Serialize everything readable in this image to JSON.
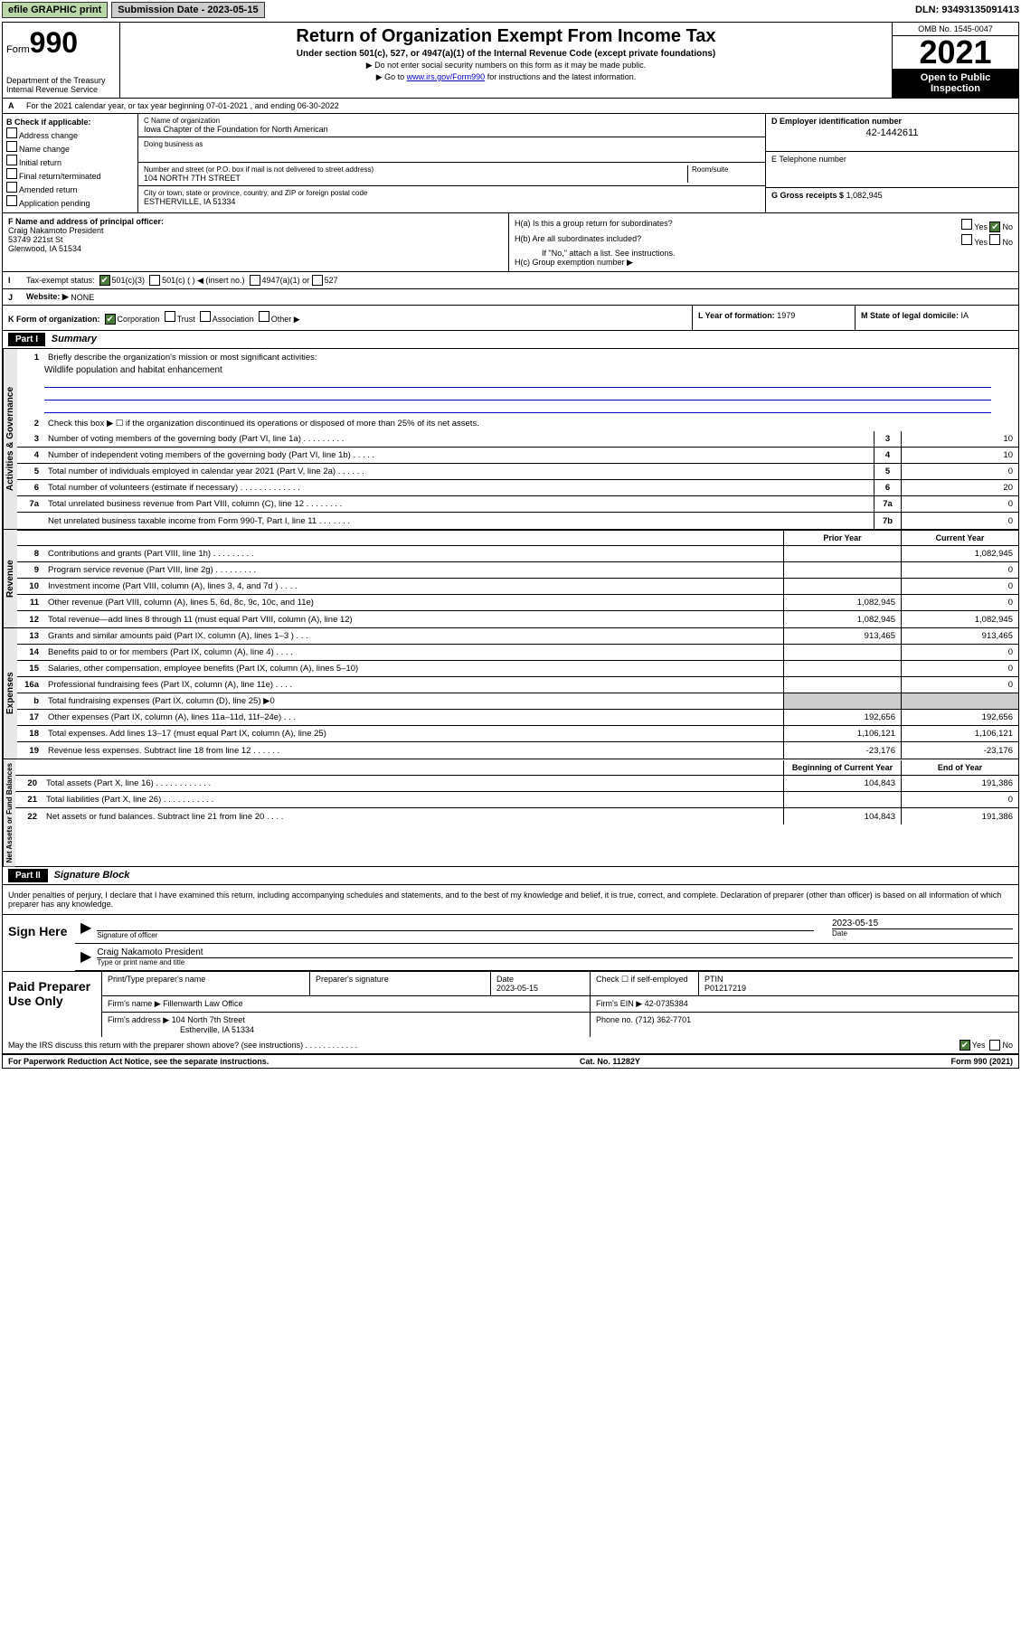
{
  "toolbar": {
    "efile": "efile GRAPHIC print",
    "submission_label": "Submission Date - 2023-05-15",
    "dln": "DLN: 93493135091413"
  },
  "header": {
    "form_label": "Form",
    "form_num": "990",
    "dept": "Department of the Treasury",
    "irs": "Internal Revenue Service",
    "title": "Return of Organization Exempt From Income Tax",
    "subtitle": "Under section 501(c), 527, or 4947(a)(1) of the Internal Revenue Code (except private foundations)",
    "note1": "▶ Do not enter social security numbers on this form as it may be made public.",
    "note2_pre": "▶ Go to ",
    "note2_link": "www.irs.gov/Form990",
    "note2_post": " for instructions and the latest information.",
    "omb": "OMB No. 1545-0047",
    "year": "2021",
    "inspection": "Open to Public Inspection"
  },
  "line_a": "For the 2021 calendar year, or tax year beginning 07-01-2021  , and ending 06-30-2022",
  "section_b": {
    "label": "B Check if applicable:",
    "opts": [
      "Address change",
      "Name change",
      "Initial return",
      "Final return/terminated",
      "Amended return",
      "Application pending"
    ]
  },
  "section_c": {
    "name_label": "C Name of organization",
    "name": "Iowa Chapter of the Foundation for North American",
    "dba_label": "Doing business as",
    "dba": "",
    "addr_label": "Number and street (or P.O. box if mail is not delivered to street address)",
    "room_label": "Room/suite",
    "addr": "104 NORTH 7TH STREET",
    "city_label": "City or town, state or province, country, and ZIP or foreign postal code",
    "city": "ESTHERVILLE, IA  51334"
  },
  "section_d": {
    "label": "D Employer identification number",
    "val": "42-1442611"
  },
  "section_e": {
    "label": "E Telephone number",
    "val": ""
  },
  "section_g": {
    "label": "G Gross receipts $",
    "val": "1,082,945"
  },
  "section_f": {
    "label": "F  Name and address of principal officer:",
    "name": "Craig Nakamoto President",
    "addr1": "53749 221st St",
    "addr2": "Glenwood, IA  51534"
  },
  "section_h": {
    "ha": "H(a)  Is this a group return for subordinates?",
    "hb": "H(b)  Are all subordinates included?",
    "hb_note": "If \"No,\" attach a list. See instructions.",
    "hc": "H(c)  Group exemption number ▶",
    "yes": "Yes",
    "no": "No"
  },
  "section_i": {
    "label": "Tax-exempt status:",
    "opt1": "501(c)(3)",
    "opt2": "501(c) (  ) ◀ (insert no.)",
    "opt3": "4947(a)(1) or",
    "opt4": "527"
  },
  "section_j": {
    "label": "Website: ▶",
    "val": "NONE"
  },
  "section_k": {
    "label": "K Form of organization:",
    "corp": "Corporation",
    "trust": "Trust",
    "assoc": "Association",
    "other": "Other ▶"
  },
  "section_l": {
    "label": "L Year of formation:",
    "val": "1979"
  },
  "section_m": {
    "label": "M State of legal domicile:",
    "val": "IA"
  },
  "part1": {
    "header": "Part I",
    "title": "Summary",
    "line1": "Briefly describe the organization's mission or most significant activities:",
    "mission": "Wildlife population and habitat enhancement",
    "line2": "Check this box ▶ ☐  if the organization discontinued its operations or disposed of more than 25% of its net assets.",
    "rows_gov": [
      {
        "n": "3",
        "t": "Number of voting members of the governing body (Part VI, line 1a)  .   .   .   .   .   .   .   .   .",
        "b": "3",
        "v": "10"
      },
      {
        "n": "4",
        "t": "Number of independent voting members of the governing body (Part VI, line 1b)  .   .   .   .   .",
        "b": "4",
        "v": "10"
      },
      {
        "n": "5",
        "t": "Total number of individuals employed in calendar year 2021 (Part V, line 2a)  .   .   .   .   .   .",
        "b": "5",
        "v": "0"
      },
      {
        "n": "6",
        "t": "Total number of volunteers (estimate if necessary)  .   .   .   .   .   .   .   .   .   .   .   .   .",
        "b": "6",
        "v": "20"
      },
      {
        "n": "7a",
        "t": "Total unrelated business revenue from Part VIII, column (C), line 12  .   .   .   .   .   .   .   .",
        "b": "7a",
        "v": "0"
      },
      {
        "n": "",
        "t": "Net unrelated business taxable income from Form 990-T, Part I, line 11  .   .   .   .   .   .   .",
        "b": "7b",
        "v": "0"
      }
    ],
    "col_prior": "Prior Year",
    "col_current": "Current Year",
    "rows_rev": [
      {
        "n": "8",
        "t": "Contributions and grants (Part VIII, line 1h)  .   .   .   .   .   .   .   .   .",
        "p": "",
        "c": "1,082,945"
      },
      {
        "n": "9",
        "t": "Program service revenue (Part VIII, line 2g)  .   .   .   .   .   .   .   .   .",
        "p": "",
        "c": "0"
      },
      {
        "n": "10",
        "t": "Investment income (Part VIII, column (A), lines 3, 4, and 7d )  .   .   .   .",
        "p": "",
        "c": "0"
      },
      {
        "n": "11",
        "t": "Other revenue (Part VIII, column (A), lines 5, 6d, 8c, 9c, 10c, and 11e)",
        "p": "1,082,945",
        "c": "0"
      },
      {
        "n": "12",
        "t": "Total revenue—add lines 8 through 11 (must equal Part VIII, column (A), line 12)",
        "p": "1,082,945",
        "c": "1,082,945"
      }
    ],
    "rows_exp": [
      {
        "n": "13",
        "t": "Grants and similar amounts paid (Part IX, column (A), lines 1–3 )  .   .   .",
        "p": "913,465",
        "c": "913,465"
      },
      {
        "n": "14",
        "t": "Benefits paid to or for members (Part IX, column (A), line 4)  .   .   .   .",
        "p": "",
        "c": "0"
      },
      {
        "n": "15",
        "t": "Salaries, other compensation, employee benefits (Part IX, column (A), lines 5–10)",
        "p": "",
        "c": "0"
      },
      {
        "n": "16a",
        "t": "Professional fundraising fees (Part IX, column (A), line 11e)  .   .   .   .",
        "p": "",
        "c": "0"
      },
      {
        "n": "b",
        "t": "Total fundraising expenses (Part IX, column (D), line 25) ▶0",
        "p": "gray",
        "c": "gray"
      },
      {
        "n": "17",
        "t": "Other expenses (Part IX, column (A), lines 11a–11d, 11f–24e)  .   .   .",
        "p": "192,656",
        "c": "192,656"
      },
      {
        "n": "18",
        "t": "Total expenses. Add lines 13–17 (must equal Part IX, column (A), line 25)",
        "p": "1,106,121",
        "c": "1,106,121"
      },
      {
        "n": "19",
        "t": "Revenue less expenses. Subtract line 18 from line 12  .   .   .   .   .   .",
        "p": "-23,176",
        "c": "-23,176"
      }
    ],
    "col_begin": "Beginning of Current Year",
    "col_end": "End of Year",
    "rows_net": [
      {
        "n": "20",
        "t": "Total assets (Part X, line 16)  .   .   .   .   .   .   .   .   .   .   .   .",
        "p": "104,843",
        "c": "191,386"
      },
      {
        "n": "21",
        "t": "Total liabilities (Part X, line 26)  .   .   .   .   .   .   .   .   .   .   .",
        "p": "",
        "c": "0"
      },
      {
        "n": "22",
        "t": "Net assets or fund balances. Subtract line 21 from line 20  .   .   .   .",
        "p": "104,843",
        "c": "191,386"
      }
    ],
    "vlabels": {
      "gov": "Activities & Governance",
      "rev": "Revenue",
      "exp": "Expenses",
      "net": "Net Assets or Fund Balances"
    }
  },
  "part2": {
    "header": "Part II",
    "title": "Signature Block",
    "decl": "Under penalties of perjury, I declare that I have examined this return, including accompanying schedules and statements, and to the best of my knowledge and belief, it is true, correct, and complete. Declaration of preparer (other than officer) is based on all information of which preparer has any knowledge.",
    "sign_here": "Sign Here",
    "sig_officer": "Signature of officer",
    "sig_date": "2023-05-15",
    "date_lbl": "Date",
    "officer_name": "Craig Nakamoto  President",
    "type_name": "Type or print name and title",
    "paid_prep": "Paid Preparer Use Only",
    "prep_name_lbl": "Print/Type preparer's name",
    "prep_sig_lbl": "Preparer's signature",
    "prep_date_lbl": "Date",
    "prep_date": "2023-05-15",
    "check_lbl": "Check ☐ if self-employed",
    "ptin_lbl": "PTIN",
    "ptin": "P01217219",
    "firm_name_lbl": "Firm's name  ▶",
    "firm_name": "Fillenwarth Law Office",
    "firm_ein_lbl": "Firm's EIN ▶",
    "firm_ein": "42-0735384",
    "firm_addr_lbl": "Firm's address ▶",
    "firm_addr": "104 North 7th Street",
    "firm_city": "Estherville, IA  51334",
    "phone_lbl": "Phone no.",
    "phone": "(712) 362-7701",
    "may_irs": "May the IRS discuss this return with the preparer shown above? (see instructions)  .   .   .   .   .   .   .   .   .   .   .   .",
    "yes": "Yes",
    "no": "No"
  },
  "footer": {
    "left": "For Paperwork Reduction Act Notice, see the separate instructions.",
    "mid": "Cat. No. 11282Y",
    "right": "Form 990 (2021)"
  }
}
